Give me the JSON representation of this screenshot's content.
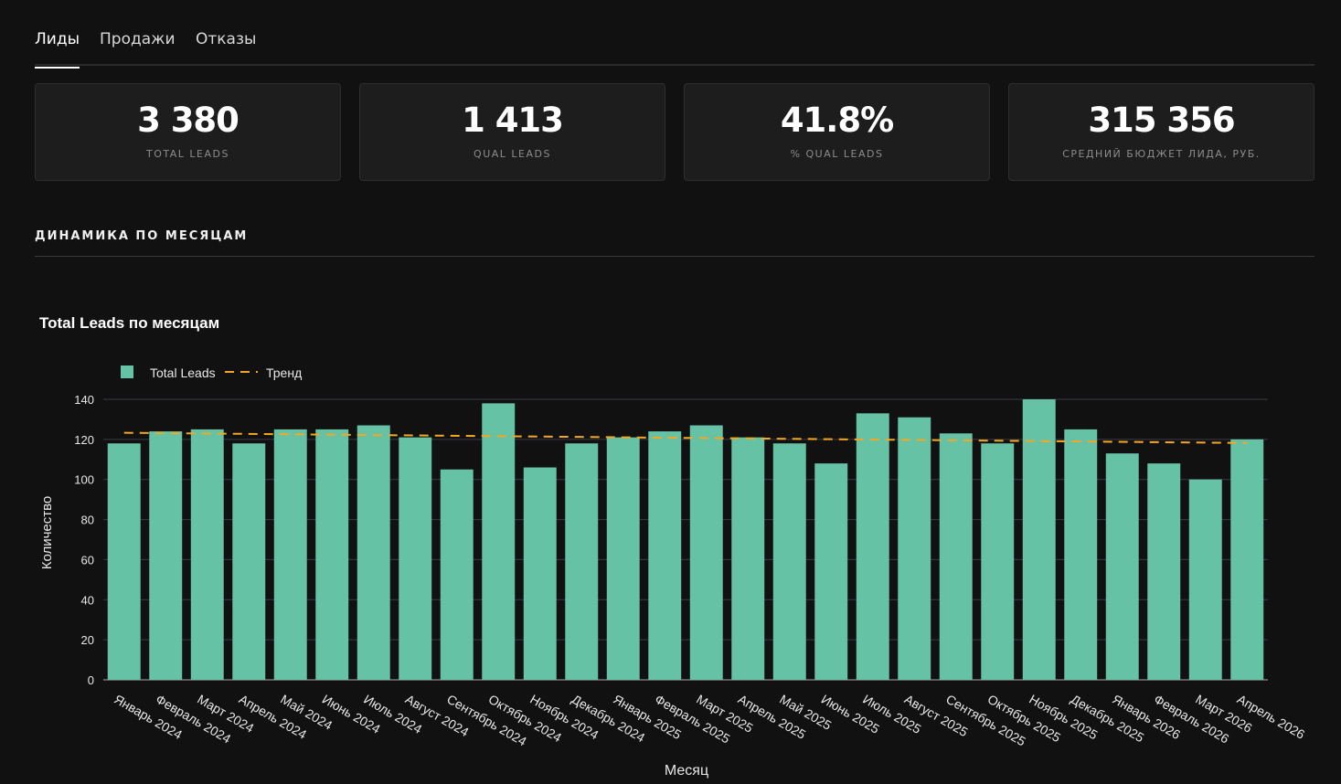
{
  "tabs": [
    {
      "label": "Лиды",
      "active": true
    },
    {
      "label": "Продажи",
      "active": false
    },
    {
      "label": "Отказы",
      "active": false
    }
  ],
  "kpis": [
    {
      "value": "3 380",
      "label": "TOTAL LEADS"
    },
    {
      "value": "1 413",
      "label": "QUAL LEADS"
    },
    {
      "value": "41.8%",
      "label": "% QUAL LEADS"
    },
    {
      "value": "315 356",
      "label": "СРЕДНИЙ БЮДЖЕТ ЛИДА, РУБ."
    }
  ],
  "section": {
    "title": "ДИНАМИКА ПО МЕСЯЦАМ"
  },
  "colors": {
    "bar": "#66c2a5",
    "trend": "#f5a623",
    "background": "#111111"
  },
  "chart_data": {
    "type": "bar",
    "title": "Total Leads по месяцам",
    "xlabel": "Месяц",
    "ylabel": "Количество",
    "ylim": [
      0,
      140
    ],
    "yticks": [
      0,
      20,
      40,
      60,
      80,
      100,
      120,
      140
    ],
    "legend_position": "top-left",
    "categories": [
      "Январь 2024",
      "Февраль 2024",
      "Март 2024",
      "Апрель 2024",
      "Май 2024",
      "Июнь 2024",
      "Июль 2024",
      "Август 2024",
      "Сентябрь 2024",
      "Октябрь 2024",
      "Ноябрь 2024",
      "Декабрь 2024",
      "Январь 2025",
      "Февраль 2025",
      "Март 2025",
      "Апрель 2025",
      "Май 2025",
      "Июнь 2025",
      "Июль 2025",
      "Август 2025",
      "Сентябрь 2025",
      "Октябрь 2025",
      "Ноябрь 2025",
      "Декабрь 2025",
      "Январь 2026",
      "Февраль 2026",
      "Март 2026",
      "Апрель 2026"
    ],
    "series": [
      {
        "name": "Total Leads",
        "values": [
          118,
          124,
          125,
          118,
          125,
          125,
          127,
          121,
          105,
          138,
          106,
          118,
          121,
          124,
          127,
          121,
          118,
          108,
          133,
          131,
          123,
          118,
          140,
          125,
          113,
          108,
          100,
          120
        ]
      },
      {
        "name": "Тренд",
        "style": "dashed",
        "start": 123.3,
        "end": 118.2
      }
    ]
  }
}
